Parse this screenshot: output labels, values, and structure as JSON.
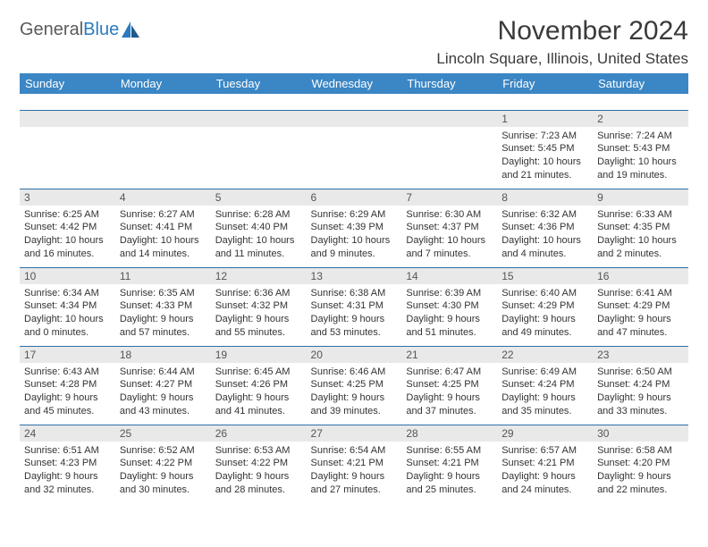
{
  "logo": {
    "text1": "General",
    "text2": "Blue"
  },
  "header": {
    "month": "November 2024",
    "location": "Lincoln Square, Illinois, United States"
  },
  "colors": {
    "header_bg": "#3b86c4",
    "header_text": "#ffffff",
    "daynum_bg": "#e9e9e9",
    "row_divider": "#2d6ea8",
    "logo_gray": "#5a5a5a",
    "logo_blue": "#2a7bbf",
    "text_color": "#333333"
  },
  "fonts": {
    "title_month_pt": 30,
    "title_loc_pt": 17,
    "dayhead_pt": 13,
    "daynum_pt": 12,
    "body_pt": 11
  },
  "weekdays": [
    "Sunday",
    "Monday",
    "Tuesday",
    "Wednesday",
    "Thursday",
    "Friday",
    "Saturday"
  ],
  "weeks": [
    [
      {
        "day": "",
        "sunrise": "",
        "sunset": "",
        "daylight": ""
      },
      {
        "day": "",
        "sunrise": "",
        "sunset": "",
        "daylight": ""
      },
      {
        "day": "",
        "sunrise": "",
        "sunset": "",
        "daylight": ""
      },
      {
        "day": "",
        "sunrise": "",
        "sunset": "",
        "daylight": ""
      },
      {
        "day": "",
        "sunrise": "",
        "sunset": "",
        "daylight": ""
      },
      {
        "day": "1",
        "sunrise": "Sunrise: 7:23 AM",
        "sunset": "Sunset: 5:45 PM",
        "daylight": "Daylight: 10 hours and 21 minutes."
      },
      {
        "day": "2",
        "sunrise": "Sunrise: 7:24 AM",
        "sunset": "Sunset: 5:43 PM",
        "daylight": "Daylight: 10 hours and 19 minutes."
      }
    ],
    [
      {
        "day": "3",
        "sunrise": "Sunrise: 6:25 AM",
        "sunset": "Sunset: 4:42 PM",
        "daylight": "Daylight: 10 hours and 16 minutes."
      },
      {
        "day": "4",
        "sunrise": "Sunrise: 6:27 AM",
        "sunset": "Sunset: 4:41 PM",
        "daylight": "Daylight: 10 hours and 14 minutes."
      },
      {
        "day": "5",
        "sunrise": "Sunrise: 6:28 AM",
        "sunset": "Sunset: 4:40 PM",
        "daylight": "Daylight: 10 hours and 11 minutes."
      },
      {
        "day": "6",
        "sunrise": "Sunrise: 6:29 AM",
        "sunset": "Sunset: 4:39 PM",
        "daylight": "Daylight: 10 hours and 9 minutes."
      },
      {
        "day": "7",
        "sunrise": "Sunrise: 6:30 AM",
        "sunset": "Sunset: 4:37 PM",
        "daylight": "Daylight: 10 hours and 7 minutes."
      },
      {
        "day": "8",
        "sunrise": "Sunrise: 6:32 AM",
        "sunset": "Sunset: 4:36 PM",
        "daylight": "Daylight: 10 hours and 4 minutes."
      },
      {
        "day": "9",
        "sunrise": "Sunrise: 6:33 AM",
        "sunset": "Sunset: 4:35 PM",
        "daylight": "Daylight: 10 hours and 2 minutes."
      }
    ],
    [
      {
        "day": "10",
        "sunrise": "Sunrise: 6:34 AM",
        "sunset": "Sunset: 4:34 PM",
        "daylight": "Daylight: 10 hours and 0 minutes."
      },
      {
        "day": "11",
        "sunrise": "Sunrise: 6:35 AM",
        "sunset": "Sunset: 4:33 PM",
        "daylight": "Daylight: 9 hours and 57 minutes."
      },
      {
        "day": "12",
        "sunrise": "Sunrise: 6:36 AM",
        "sunset": "Sunset: 4:32 PM",
        "daylight": "Daylight: 9 hours and 55 minutes."
      },
      {
        "day": "13",
        "sunrise": "Sunrise: 6:38 AM",
        "sunset": "Sunset: 4:31 PM",
        "daylight": "Daylight: 9 hours and 53 minutes."
      },
      {
        "day": "14",
        "sunrise": "Sunrise: 6:39 AM",
        "sunset": "Sunset: 4:30 PM",
        "daylight": "Daylight: 9 hours and 51 minutes."
      },
      {
        "day": "15",
        "sunrise": "Sunrise: 6:40 AM",
        "sunset": "Sunset: 4:29 PM",
        "daylight": "Daylight: 9 hours and 49 minutes."
      },
      {
        "day": "16",
        "sunrise": "Sunrise: 6:41 AM",
        "sunset": "Sunset: 4:29 PM",
        "daylight": "Daylight: 9 hours and 47 minutes."
      }
    ],
    [
      {
        "day": "17",
        "sunrise": "Sunrise: 6:43 AM",
        "sunset": "Sunset: 4:28 PM",
        "daylight": "Daylight: 9 hours and 45 minutes."
      },
      {
        "day": "18",
        "sunrise": "Sunrise: 6:44 AM",
        "sunset": "Sunset: 4:27 PM",
        "daylight": "Daylight: 9 hours and 43 minutes."
      },
      {
        "day": "19",
        "sunrise": "Sunrise: 6:45 AM",
        "sunset": "Sunset: 4:26 PM",
        "daylight": "Daylight: 9 hours and 41 minutes."
      },
      {
        "day": "20",
        "sunrise": "Sunrise: 6:46 AM",
        "sunset": "Sunset: 4:25 PM",
        "daylight": "Daylight: 9 hours and 39 minutes."
      },
      {
        "day": "21",
        "sunrise": "Sunrise: 6:47 AM",
        "sunset": "Sunset: 4:25 PM",
        "daylight": "Daylight: 9 hours and 37 minutes."
      },
      {
        "day": "22",
        "sunrise": "Sunrise: 6:49 AM",
        "sunset": "Sunset: 4:24 PM",
        "daylight": "Daylight: 9 hours and 35 minutes."
      },
      {
        "day": "23",
        "sunrise": "Sunrise: 6:50 AM",
        "sunset": "Sunset: 4:24 PM",
        "daylight": "Daylight: 9 hours and 33 minutes."
      }
    ],
    [
      {
        "day": "24",
        "sunrise": "Sunrise: 6:51 AM",
        "sunset": "Sunset: 4:23 PM",
        "daylight": "Daylight: 9 hours and 32 minutes."
      },
      {
        "day": "25",
        "sunrise": "Sunrise: 6:52 AM",
        "sunset": "Sunset: 4:22 PM",
        "daylight": "Daylight: 9 hours and 30 minutes."
      },
      {
        "day": "26",
        "sunrise": "Sunrise: 6:53 AM",
        "sunset": "Sunset: 4:22 PM",
        "daylight": "Daylight: 9 hours and 28 minutes."
      },
      {
        "day": "27",
        "sunrise": "Sunrise: 6:54 AM",
        "sunset": "Sunset: 4:21 PM",
        "daylight": "Daylight: 9 hours and 27 minutes."
      },
      {
        "day": "28",
        "sunrise": "Sunrise: 6:55 AM",
        "sunset": "Sunset: 4:21 PM",
        "daylight": "Daylight: 9 hours and 25 minutes."
      },
      {
        "day": "29",
        "sunrise": "Sunrise: 6:57 AM",
        "sunset": "Sunset: 4:21 PM",
        "daylight": "Daylight: 9 hours and 24 minutes."
      },
      {
        "day": "30",
        "sunrise": "Sunrise: 6:58 AM",
        "sunset": "Sunset: 4:20 PM",
        "daylight": "Daylight: 9 hours and 22 minutes."
      }
    ]
  ]
}
